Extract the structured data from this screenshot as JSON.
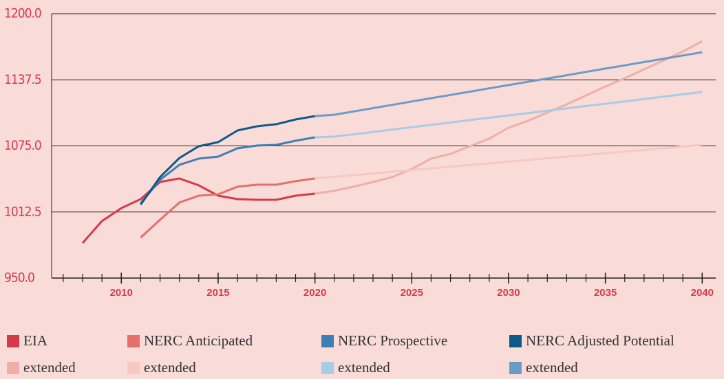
{
  "chart_data": {
    "type": "line",
    "x": [
      2008,
      2009,
      2010,
      2011,
      2012,
      2013,
      2014,
      2015,
      2016,
      2017,
      2018,
      2019,
      2020,
      2021,
      2022,
      2023,
      2024,
      2025,
      2026,
      2027,
      2028,
      2029,
      2030,
      2031,
      2032,
      2033,
      2034,
      2035,
      2036,
      2037,
      2038,
      2039,
      2040
    ],
    "xlim": [
      2006.4,
      2040.7
    ],
    "xticks": [
      2010,
      2015,
      2020,
      2025,
      2030,
      2035,
      2040
    ],
    "ylim": [
      950,
      1200
    ],
    "yticks": [
      {
        "value": 950,
        "label": "950.0"
      },
      {
        "value": 1012.5,
        "label": "1012.5"
      },
      {
        "value": 1075,
        "label": "1075.0"
      },
      {
        "value": 1137.5,
        "label": "1137.5"
      },
      {
        "value": 1200,
        "label": "1200.0"
      }
    ],
    "grid": true,
    "series": [
      {
        "name": "EIA",
        "color": "#d63a4a",
        "values": [
          983.1,
          1003.9,
          1016.2,
          1024.7,
          1040.9,
          1044.2,
          1037.7,
          1027.9,
          1024.7,
          1024,
          1024,
          1027.9,
          1029.9,
          null,
          null,
          null,
          null,
          null,
          null,
          null,
          null,
          null,
          null,
          null,
          null,
          null,
          null,
          null,
          null,
          null,
          null,
          null,
          null
        ]
      },
      {
        "name": "extended",
        "color": "#f0aea8",
        "values": [
          null,
          null,
          null,
          null,
          null,
          null,
          null,
          null,
          null,
          null,
          null,
          null,
          1029.9,
          1032.5,
          1036.4,
          1040.9,
          1045.5,
          1053.2,
          1063,
          1067.5,
          1074.7,
          1081.8,
          1092.2,
          1098.7,
          1106.5,
          1114.3,
          1122.7,
          1131.2,
          1139,
          1147.4,
          1155.8,
          1164.3,
          1174
        ]
      },
      {
        "name": "NERC Anticipated",
        "color": "#e5706a",
        "values": [
          null,
          null,
          null,
          988.3,
          1005.2,
          1021.4,
          1027.9,
          1029.2,
          1036.4,
          1038.3,
          1038.3,
          1041.6,
          1044.2,
          null,
          null,
          null,
          null,
          null,
          null,
          null,
          null,
          null,
          null,
          null,
          null,
          null,
          null,
          null,
          null,
          null,
          null,
          null,
          null
        ]
      },
      {
        "name": "extended",
        "color": "#f7c8c0",
        "values": [
          null,
          null,
          null,
          null,
          null,
          null,
          null,
          null,
          null,
          null,
          null,
          null,
          1044.2,
          1045.8,
          1047.4,
          1048.9,
          1050.6,
          1052.2,
          1053.7,
          1055.3,
          1056.9,
          1058.5,
          1060.1,
          1061.7,
          1063.3,
          1064.9,
          1066.5,
          1068.1,
          1069.6,
          1071.2,
          1072.8,
          1074.4,
          1076
        ]
      },
      {
        "name": "NERC Prospective",
        "color": "#3d7fb5",
        "values": [
          null,
          null,
          null,
          1020.8,
          1042.9,
          1057.1,
          1063,
          1064.9,
          1072.7,
          1075.3,
          1076,
          1079.9,
          1083.1,
          null,
          null,
          null,
          null,
          null,
          null,
          null,
          null,
          null,
          null,
          null,
          null,
          null,
          null,
          null,
          null,
          null,
          null,
          null,
          null
        ]
      },
      {
        "name": "extended",
        "color": "#a9cbe6",
        "values": [
          null,
          null,
          null,
          null,
          null,
          null,
          null,
          null,
          null,
          null,
          null,
          null,
          1083.1,
          1083.8,
          1086,
          1088.2,
          1090.5,
          1092.7,
          1094.9,
          1097.1,
          1099.4,
          1101.6,
          1103.8,
          1106,
          1108.3,
          1110.5,
          1112.7,
          1114.9,
          1117.1,
          1119.3,
          1121.6,
          1123.8,
          1126
        ]
      },
      {
        "name": "NERC Adjusted Potential",
        "color": "#0d5a8a",
        "values": [
          null,
          null,
          null,
          1019.5,
          1045.5,
          1063.6,
          1074.7,
          1078.6,
          1089.6,
          1093.5,
          1095.5,
          1100,
          1103.2,
          null,
          null,
          null,
          null,
          null,
          null,
          null,
          null,
          null,
          null,
          null,
          null,
          null,
          null,
          null,
          null,
          null,
          null,
          null,
          null
        ]
      },
      {
        "name": "extended",
        "color": "#6b9bc8",
        "values": [
          null,
          null,
          null,
          null,
          null,
          null,
          null,
          null,
          null,
          null,
          null,
          null,
          1103.2,
          1104.5,
          1107.6,
          1110.7,
          1113.8,
          1117,
          1120.1,
          1123.2,
          1126.3,
          1129.4,
          1132.5,
          1135.6,
          1138.7,
          1141.8,
          1145,
          1148.1,
          1151.2,
          1154.3,
          1157.4,
          1160.5,
          1163.6
        ]
      }
    ]
  }
}
